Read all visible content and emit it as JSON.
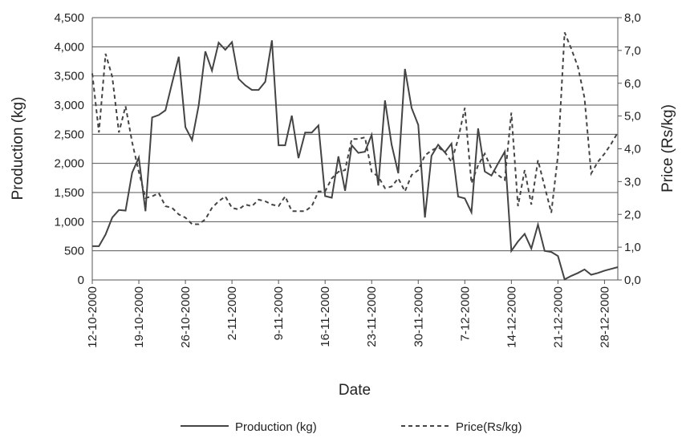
{
  "chart_data": {
    "type": "line",
    "x_label": "Date",
    "y_label": "Production (kg)",
    "y2_label": "Price (Rs/kg)",
    "x": [
      "12-10-2000",
      "13-10-2000",
      "14-10-2000",
      "15-10-2000",
      "16-10-2000",
      "17-10-2000",
      "18-10-2000",
      "19-10-2000",
      "20-10-2000",
      "21-10-2000",
      "22-10-2000",
      "23-10-2000",
      "24-10-2000",
      "25-10-2000",
      "26-10-2000",
      "27-10-2000",
      "28-10-2000",
      "29-10-2000",
      "30-10-2000",
      "31-10-2000",
      "1-11-2000",
      "2-11-2000",
      "3-11-2000",
      "4-11-2000",
      "5-11-2000",
      "6-11-2000",
      "7-11-2000",
      "8-11-2000",
      "9-11-2000",
      "10-11-2000",
      "11-11-2000",
      "12-11-2000",
      "13-11-2000",
      "14-11-2000",
      "15-11-2000",
      "16-11-2000",
      "17-11-2000",
      "18-11-2000",
      "19-11-2000",
      "20-11-2000",
      "21-11-2000",
      "22-11-2000",
      "23-11-2000",
      "24-11-2000",
      "25-11-2000",
      "26-11-2000",
      "27-11-2000",
      "28-11-2000",
      "29-11-2000",
      "30-11-2000",
      "1-12-2000",
      "2-12-2000",
      "3-12-2000",
      "4-12-2000",
      "5-12-2000",
      "6-12-2000",
      "7-12-2000",
      "8-12-2000",
      "9-12-2000",
      "10-12-2000",
      "11-12-2000",
      "12-12-2000",
      "13-12-2000",
      "14-12-2000",
      "15-12-2000",
      "16-12-2000",
      "17-12-2000",
      "18-12-2000",
      "19-12-2000",
      "20-12-2000",
      "21-12-2000",
      "22-12-2000",
      "23-12-2000",
      "24-12-2000",
      "25-12-2000",
      "26-12-2000",
      "27-12-2000",
      "28-12-2000",
      "29-12-2000",
      "30-12-2000"
    ],
    "series": [
      {
        "name": "Production (kg)",
        "color": "#444444",
        "dash": "solid",
        "values": [
          580,
          580,
          780,
          1070,
          1200,
          1190,
          1840,
          2100,
          1180,
          2790,
          2830,
          2910,
          3380,
          3830,
          2620,
          2400,
          3000,
          3920,
          3590,
          4070,
          3950,
          4080,
          3450,
          3340,
          3260,
          3260,
          3400,
          4110,
          2310,
          2310,
          2820,
          2090,
          2530,
          2530,
          2650,
          1440,
          1410,
          2120,
          1530,
          2310,
          2180,
          2200,
          2490,
          1620,
          3080,
          2320,
          1830,
          3620,
          2950,
          2660,
          1070,
          2130,
          2320,
          2190,
          2340,
          1430,
          1400,
          1160,
          2600,
          1860,
          1790,
          2000,
          2200,
          500,
          660,
          790,
          540,
          950,
          500,
          480,
          410,
          10,
          70,
          120,
          180,
          90,
          120,
          160,
          190,
          220
        ]
      },
      {
        "name": "Price(Rs/kg)",
        "color": "#444444",
        "dash": "dashed",
        "axis": "y2",
        "values": [
          6.3,
          4.5,
          6.9,
          6.2,
          4.5,
          5.3,
          4.2,
          3.3,
          2.5,
          2.55,
          2.65,
          2.25,
          2.2,
          2.0,
          1.9,
          1.7,
          1.7,
          1.85,
          2.2,
          2.4,
          2.55,
          2.2,
          2.15,
          2.3,
          2.25,
          2.45,
          2.4,
          2.3,
          2.25,
          2.55,
          2.1,
          2.1,
          2.1,
          2.25,
          2.7,
          2.7,
          3.1,
          3.3,
          3.35,
          4.3,
          4.3,
          4.35,
          3.3,
          3.15,
          2.8,
          2.85,
          3.1,
          2.7,
          3.2,
          3.35,
          3.8,
          3.95,
          4.05,
          3.9,
          3.6,
          4.3,
          5.25,
          2.95,
          3.5,
          3.85,
          3.4,
          3.2,
          3.05,
          5.1,
          2.25,
          3.35,
          2.3,
          3.65,
          2.85,
          2.05,
          3.8,
          7.55,
          7.05,
          6.5,
          5.55,
          3.25,
          3.6,
          3.85,
          4.15,
          4.5
        ]
      }
    ],
    "xlim": [
      "12-10-2000",
      "30-12-2000"
    ],
    "xticks": [
      "12-10-2000",
      "19-10-2000",
      "26-10-2000",
      "2-11-2000",
      "9-11-2000",
      "16-11-2000",
      "23-11-2000",
      "30-11-2000",
      "7-12-2000",
      "14-12-2000",
      "21-12-2000",
      "28-12-2000"
    ],
    "ylim": [
      0,
      4500
    ],
    "yticks": [
      0,
      500,
      {
        "value": 1000,
        "label": "1,000"
      },
      {
        "value": 1500,
        "label": "1,500"
      },
      {
        "value": 2000,
        "label": "2,000"
      },
      {
        "value": 2500,
        "label": "2,500"
      },
      {
        "value": 3000,
        "label": "3,000"
      },
      {
        "value": 3500,
        "label": "3,500"
      },
      {
        "value": 4000,
        "label": "4,000"
      },
      {
        "value": 4500,
        "label": "4,500"
      }
    ],
    "y2lim": [
      0,
      8
    ],
    "y2ticks": [
      {
        "value": 0,
        "label": "0,0"
      },
      {
        "value": 1,
        "label": "1,0"
      },
      {
        "value": 2,
        "label": "2,0"
      },
      {
        "value": 3,
        "label": "3,0"
      },
      {
        "value": 4,
        "label": "4,0"
      },
      {
        "value": 5,
        "label": "5,0"
      },
      {
        "value": 6,
        "label": "6,0"
      },
      {
        "value": 7,
        "label": "7,0"
      },
      {
        "value": 8,
        "label": "8,0"
      }
    ],
    "grid": true,
    "legend": "bottom"
  }
}
